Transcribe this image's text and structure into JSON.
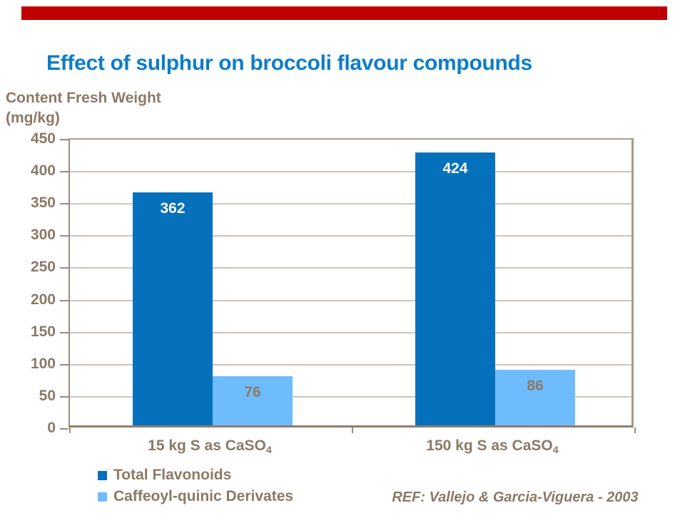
{
  "colors": {
    "accent_red": "#C00000",
    "title_blue": "#0C7DC9",
    "label_taupe": "#8B7966",
    "gridline": "#CDC5BB",
    "axis_line": "#9D8C7B",
    "dark_bar_blue": "#0571BC",
    "light_bar_blue": "#6FBCFC",
    "dark_bar_label": "#FFFFFF"
  },
  "title": {
    "text": "Effect of sulphur on broccoli flavour compounds"
  },
  "axis_title": {
    "line1": "Content Fresh Weight",
    "line2": "(mg/kg)"
  },
  "footer": {
    "ref_text": "REF: Vallejo & Garcia-Viguera - 2003"
  },
  "chart_data": {
    "type": "bar",
    "title": "Effect of sulphur on broccoli flavour compounds",
    "xlabel": "",
    "ylabel": "Content Fresh Weight (mg/kg)",
    "ylim": [
      0,
      450
    ],
    "yticks": [
      0,
      50,
      100,
      150,
      200,
      250,
      300,
      350,
      400,
      450
    ],
    "grid": true,
    "legend_position": "bottom-left",
    "categories": [
      {
        "text": "15 kg S as CaSO₄",
        "main": "15 kg S as CaSO",
        "sub": "4"
      },
      {
        "text": "150 kg S as CaSO₄",
        "main": "150 kg S as CaSO",
        "sub": "4"
      }
    ],
    "series": [
      {
        "name": "Total Flavonoids",
        "color": "#0571BC",
        "label_color": "#FFFFFF",
        "values": [
          362,
          424
        ]
      },
      {
        "name": "Caffeoyl-quinic Derivates",
        "color": "#6FBCFC",
        "label_color": "#8B7966",
        "values": [
          76,
          86
        ]
      }
    ]
  }
}
